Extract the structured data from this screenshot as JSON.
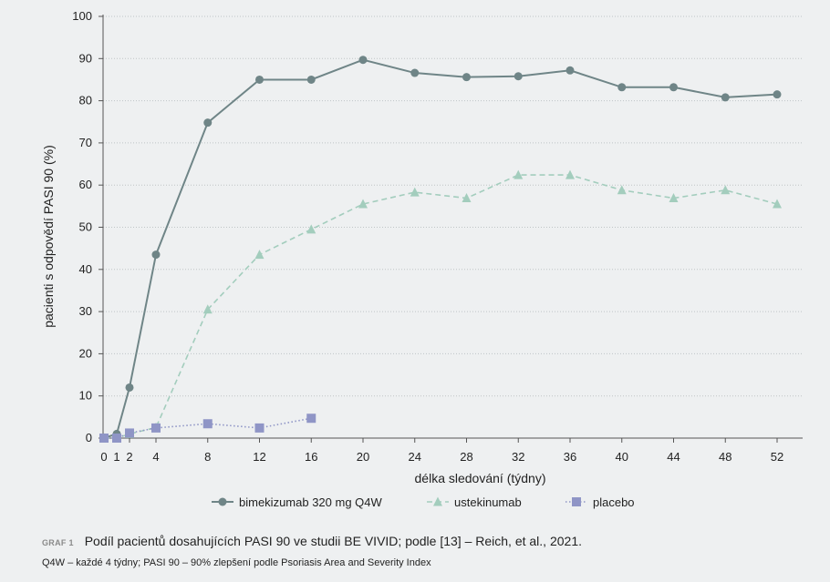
{
  "chart_data": {
    "type": "line",
    "title": "",
    "xlabel": "délka sledování (týdny)",
    "ylabel": "pacienti s odpovědí PASI 90 (%)",
    "ylim": [
      0,
      100
    ],
    "yticks": [
      0,
      10,
      20,
      30,
      40,
      50,
      60,
      70,
      80,
      90,
      100
    ],
    "xticks": [
      0,
      1,
      2,
      4,
      8,
      12,
      16,
      20,
      24,
      28,
      32,
      36,
      40,
      44,
      48,
      52
    ],
    "xscale": "categorical-positions",
    "grid": "horizontal-dotted",
    "legend_position": "bottom",
    "series": [
      {
        "name": "bimekizumab 320 mg Q4W",
        "color": "#6f8587",
        "marker": "circle",
        "dash": "solid",
        "x": [
          0,
          1,
          2,
          4,
          8,
          12,
          16,
          20,
          24,
          28,
          32,
          36,
          40,
          44,
          48,
          52
        ],
        "values": [
          0,
          1,
          12,
          43.5,
          74.8,
          85,
          85,
          89.7,
          86.6,
          85.6,
          85.8,
          87.2,
          83.2,
          83.2,
          80.8,
          81.5
        ]
      },
      {
        "name": "ustekinumab",
        "color": "#a3cdbd",
        "marker": "triangle",
        "dash": "dashed",
        "x": [
          0,
          1,
          2,
          4,
          8,
          12,
          16,
          20,
          24,
          28,
          32,
          36,
          40,
          44,
          48,
          52
        ],
        "values": [
          0,
          0,
          1,
          2.5,
          30.5,
          43.5,
          49.5,
          55.5,
          58.3,
          56.9,
          62.4,
          62.4,
          58.8,
          56.9,
          58.8,
          55.5
        ]
      },
      {
        "name": "placebo",
        "color": "#8f95c6",
        "marker": "square",
        "dash": "dotted",
        "x": [
          0,
          1,
          2,
          4,
          8,
          12,
          16
        ],
        "values": [
          0,
          0,
          1.2,
          2.4,
          3.4,
          2.4,
          4.7
        ]
      }
    ]
  },
  "caption": {
    "label": "GRAF 1",
    "text": "Podíl pacientů dosahujících PASI 90 ve studii BE VIVID; podle [13] – Reich, et al., 2021.",
    "note": "Q4W – každé 4 týdny; PASI 90 – 90% zlepšení podle Psoriasis Area and Severity Index"
  }
}
